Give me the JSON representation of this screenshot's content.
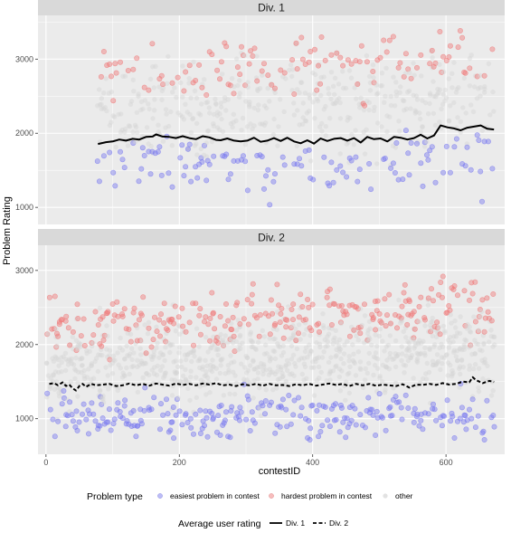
{
  "chart_data": {
    "type": "scatter",
    "xlabel": "contestID",
    "ylabel": "Problem Rating",
    "xlim": [
      -12,
      688
    ],
    "x_ticks": [
      0,
      200,
      400,
      600
    ],
    "panels": [
      {
        "strip": "Div. 1",
        "ylim": [
          770,
          3590
        ],
        "y_ticks": [
          1000,
          2000,
          3000
        ],
        "average_line": {
          "name": "Div. 1",
          "style": "solid",
          "points": [
            [
              78,
              1855
            ],
            [
              90,
              1880
            ],
            [
              100,
              1890
            ],
            [
              110,
              1915
            ],
            [
              120,
              1900
            ],
            [
              130,
              1925
            ],
            [
              140,
              1915
            ],
            [
              150,
              1950
            ],
            [
              160,
              1955
            ],
            [
              165,
              1985
            ],
            [
              175,
              1955
            ],
            [
              185,
              1950
            ],
            [
              195,
              1935
            ],
            [
              205,
              1960
            ],
            [
              215,
              1935
            ],
            [
              225,
              1920
            ],
            [
              235,
              1960
            ],
            [
              245,
              1945
            ],
            [
              255,
              1910
            ],
            [
              262,
              1905
            ],
            [
              272,
              1930
            ],
            [
              282,
              1900
            ],
            [
              292,
              1890
            ],
            [
              302,
              1900
            ],
            [
              312,
              1940
            ],
            [
              322,
              1885
            ],
            [
              332,
              1900
            ],
            [
              342,
              1935
            ],
            [
              352,
              1895
            ],
            [
              362,
              1940
            ],
            [
              372,
              1890
            ],
            [
              382,
              1865
            ],
            [
              392,
              1905
            ],
            [
              402,
              1860
            ],
            [
              412,
              1930
            ],
            [
              422,
              1895
            ],
            [
              432,
              1925
            ],
            [
              442,
              1935
            ],
            [
              452,
              1900
            ],
            [
              462,
              1935
            ],
            [
              472,
              1875
            ],
            [
              482,
              1950
            ],
            [
              492,
              1920
            ],
            [
              502,
              1930
            ],
            [
              512,
              1890
            ],
            [
              522,
              1950
            ],
            [
              532,
              1940
            ],
            [
              542,
              1915
            ],
            [
              552,
              1935
            ],
            [
              562,
              1980
            ],
            [
              572,
              1930
            ],
            [
              582,
              1970
            ],
            [
              592,
              2105
            ],
            [
              602,
              2080
            ],
            [
              612,
              2065
            ],
            [
              622,
              2040
            ],
            [
              632,
              2075
            ],
            [
              642,
              2090
            ],
            [
              652,
              2105
            ],
            [
              662,
              2060
            ],
            [
              672,
              2050
            ]
          ]
        }
      },
      {
        "strip": "Div. 2",
        "ylim": [
          520,
          3340
        ],
        "y_ticks": [
          1000,
          2000,
          3000
        ],
        "average_line": {
          "name": "Div. 2",
          "style": "dashed",
          "points": [
            [
              5,
              1470
            ],
            [
              12,
              1480
            ],
            [
              18,
              1450
            ],
            [
              25,
              1490
            ],
            [
              30,
              1440
            ],
            [
              35,
              1460
            ],
            [
              40,
              1410
            ],
            [
              45,
              1380
            ],
            [
              50,
              1440
            ],
            [
              55,
              1470
            ],
            [
              60,
              1430
            ],
            [
              68,
              1470
            ],
            [
              75,
              1450
            ],
            [
              85,
              1460
            ],
            [
              95,
              1470
            ],
            [
              105,
              1440
            ],
            [
              115,
              1450
            ],
            [
              125,
              1475
            ],
            [
              135,
              1450
            ],
            [
              145,
              1470
            ],
            [
              155,
              1445
            ],
            [
              165,
              1475
            ],
            [
              175,
              1460
            ],
            [
              185,
              1445
            ],
            [
              195,
              1475
            ],
            [
              205,
              1455
            ],
            [
              215,
              1470
            ],
            [
              225,
              1450
            ],
            [
              235,
              1475
            ],
            [
              245,
              1460
            ],
            [
              255,
              1480
            ],
            [
              265,
              1450
            ],
            [
              275,
              1460
            ],
            [
              285,
              1440
            ],
            [
              295,
              1465
            ],
            [
              305,
              1450
            ],
            [
              315,
              1470
            ],
            [
              325,
              1445
            ],
            [
              335,
              1470
            ],
            [
              345,
              1450
            ],
            [
              355,
              1455
            ],
            [
              365,
              1440
            ],
            [
              375,
              1465
            ],
            [
              385,
              1450
            ],
            [
              395,
              1470
            ],
            [
              405,
              1445
            ],
            [
              415,
              1460
            ],
            [
              425,
              1475
            ],
            [
              435,
              1455
            ],
            [
              445,
              1470
            ],
            [
              455,
              1440
            ],
            [
              465,
              1470
            ],
            [
              475,
              1450
            ],
            [
              485,
              1470
            ],
            [
              495,
              1445
            ],
            [
              505,
              1460
            ],
            [
              515,
              1450
            ],
            [
              525,
              1440
            ],
            [
              535,
              1465
            ],
            [
              545,
              1420
            ],
            [
              555,
              1460
            ],
            [
              565,
              1455
            ],
            [
              575,
              1470
            ],
            [
              585,
              1455
            ],
            [
              595,
              1480
            ],
            [
              605,
              1460
            ],
            [
              615,
              1470
            ],
            [
              625,
              1500
            ],
            [
              635,
              1490
            ],
            [
              640,
              1560
            ],
            [
              645,
              1520
            ],
            [
              655,
              1480
            ],
            [
              665,
              1510
            ],
            [
              672,
              1495
            ]
          ]
        }
      }
    ],
    "series": [
      {
        "key": "easiest",
        "name": "easiest problem in contest",
        "color": "#7b7bf0"
      },
      {
        "key": "hardest",
        "name": "hardest problem in contest",
        "color": "#f07b7b"
      },
      {
        "key": "other",
        "name": "other",
        "color": "#d4d4d4"
      }
    ],
    "legend": {
      "placement": "bottom",
      "problem_type_title": "Problem type",
      "avg_title": "Average user rating",
      "avg_entries": [
        {
          "name": "Div. 1",
          "style": "solid"
        },
        {
          "name": "Div. 2",
          "style": "dashed"
        }
      ]
    },
    "colors": {
      "panel_bg": "#ebebeb",
      "strip_bg": "#d9d9d9",
      "grid": "#ffffff",
      "line": "#000000"
    }
  }
}
